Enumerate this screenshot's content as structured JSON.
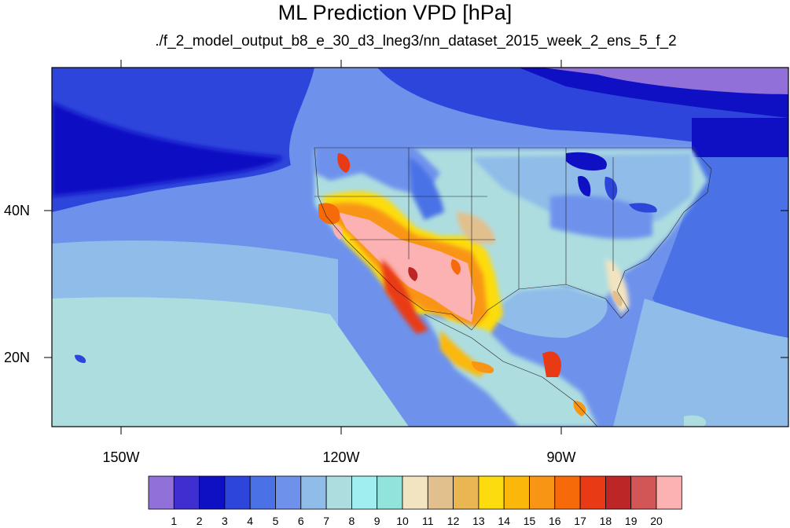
{
  "title": "ML Prediction VPD [hPa]",
  "subtitle": "./f_2_model_output_b8_e_30_d3_lneg3/nn_dataset_2015_week_2_ens_5_f_2",
  "axes": {
    "longitude_ticks": [
      "150W",
      "120W",
      "90W"
    ],
    "latitude_ticks": [
      "40N",
      "20N"
    ],
    "lon_range": [
      -160,
      -62
    ],
    "lat_range": [
      11,
      60
    ]
  },
  "colorbar": {
    "labels": [
      "1",
      "2",
      "3",
      "4",
      "5",
      "6",
      "7",
      "8",
      "9",
      "10",
      "11",
      "12",
      "13",
      "14",
      "15",
      "16",
      "17",
      "18",
      "19",
      "20"
    ],
    "colors": [
      "#9171d9",
      "#3f2ed0",
      "#0f0fc4",
      "#2e45dc",
      "#4a72e6",
      "#6e92ec",
      "#8fbce8",
      "#aedde0",
      "#a0eef0",
      "#90e4dc",
      "#f2e4c0",
      "#e2c08e",
      "#e9b652",
      "#fcdc0f",
      "#fbb80a",
      "#f99514",
      "#f76a0a",
      "#e93a16",
      "#bd2626",
      "#d25656",
      "#fcb2b2"
    ]
  }
}
